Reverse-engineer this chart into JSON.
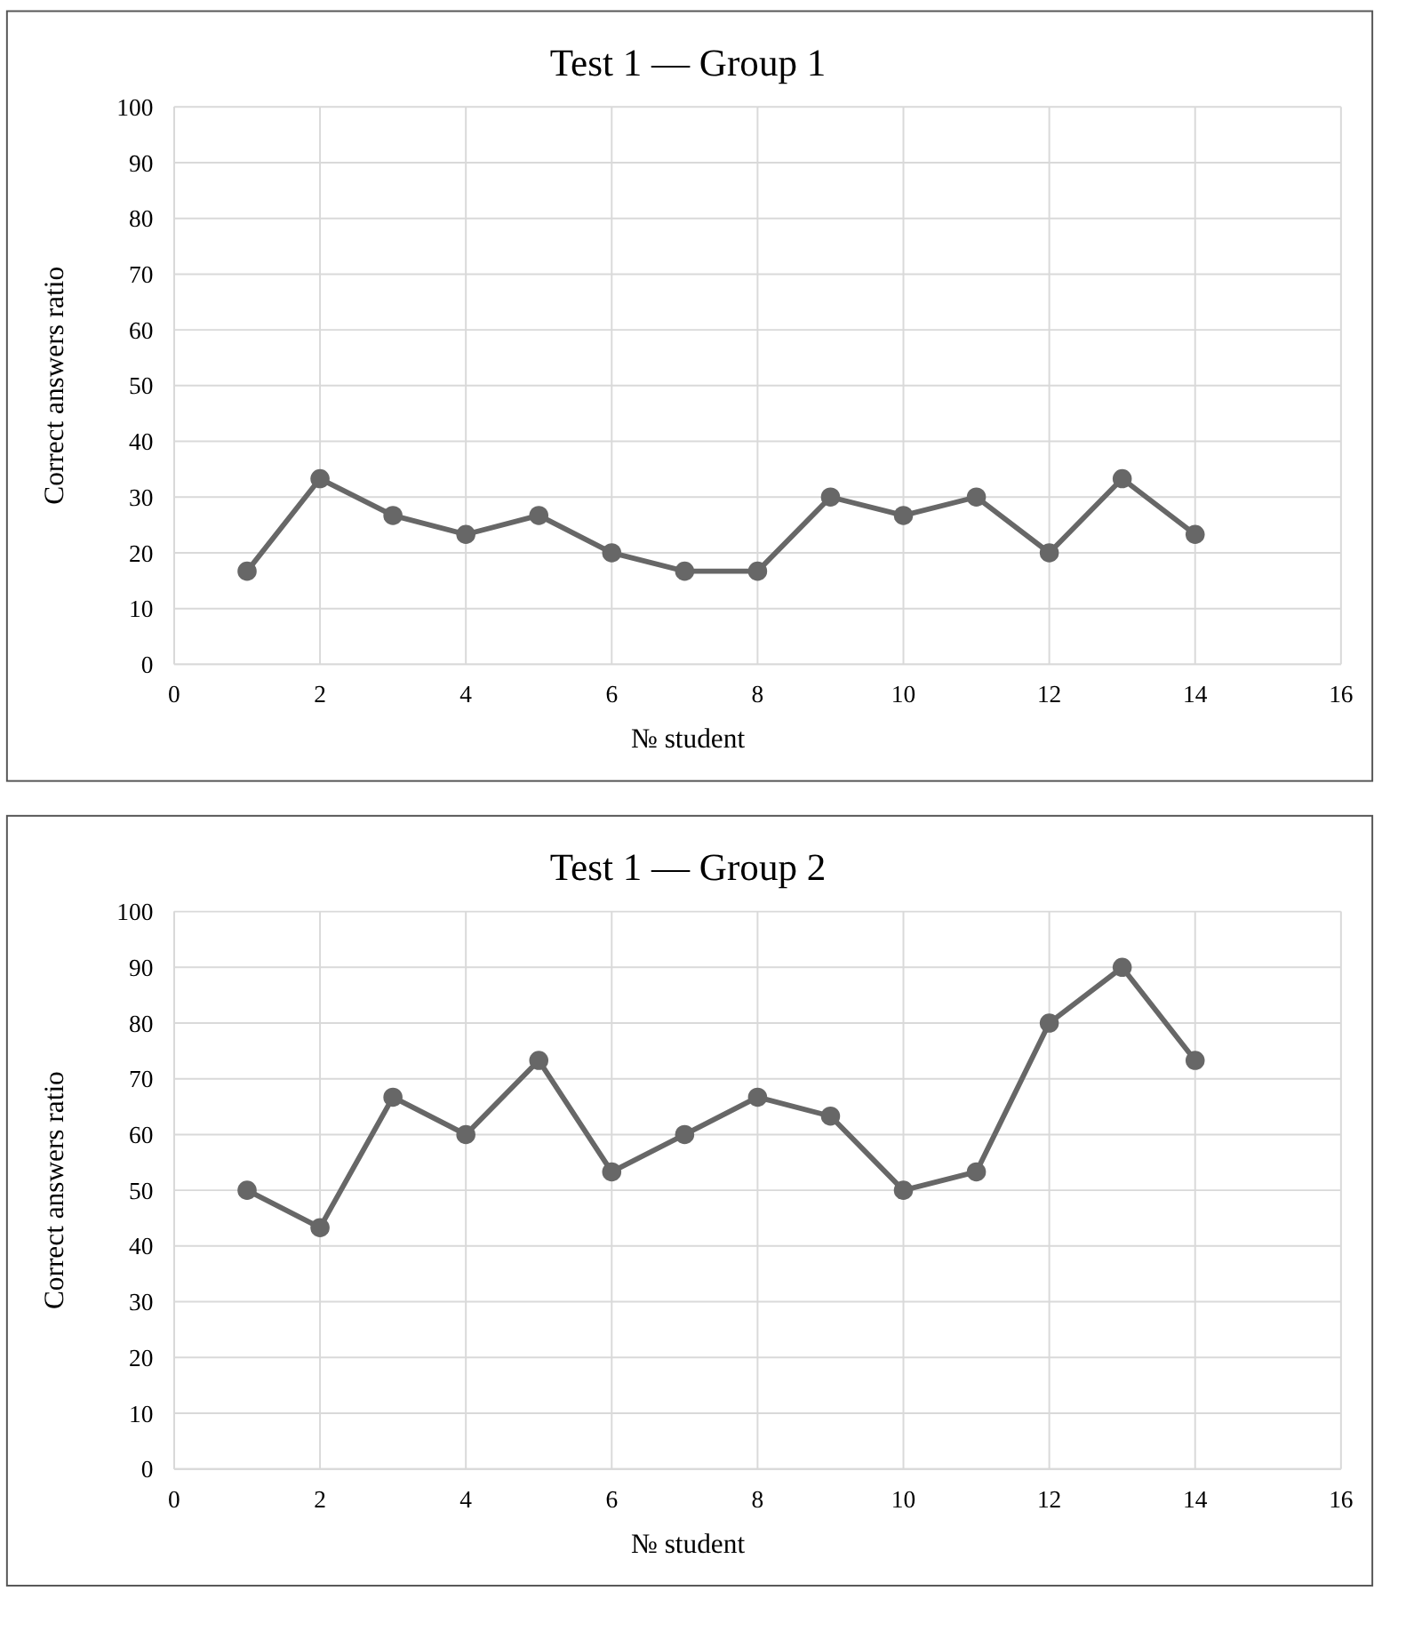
{
  "chart_data": [
    {
      "type": "line",
      "title": "Test 1 — Group 1",
      "xlabel": "№ student",
      "ylabel": "Correct answers ratio",
      "x": [
        1,
        2,
        3,
        4,
        5,
        6,
        7,
        8,
        9,
        10,
        11,
        12,
        13,
        14
      ],
      "values": [
        16.7,
        33.3,
        26.7,
        23.3,
        26.7,
        20,
        16.7,
        16.7,
        30,
        26.7,
        30,
        20,
        33.3,
        23.3
      ],
      "color": "#676767",
      "marker": "circle",
      "grid": true,
      "xlim": [
        0,
        16
      ],
      "xticks": [
        0,
        2,
        4,
        6,
        8,
        10,
        12,
        14,
        16
      ],
      "ylim": [
        0,
        100
      ],
      "yticks": [
        0,
        10,
        20,
        30,
        40,
        50,
        60,
        70,
        80,
        90,
        100
      ]
    },
    {
      "type": "line",
      "title": "Test 1 — Group 2",
      "xlabel": "№ student",
      "ylabel": "Correct answers ratio",
      "x": [
        1,
        2,
        3,
        4,
        5,
        6,
        7,
        8,
        9,
        10,
        11,
        12,
        13,
        14
      ],
      "values": [
        50,
        43.3,
        66.7,
        60,
        73.3,
        53.3,
        60,
        66.7,
        63.3,
        50,
        53.3,
        80,
        90,
        73.3
      ],
      "color": "#676767",
      "marker": "circle",
      "grid": true,
      "xlim": [
        0,
        16
      ],
      "xticks": [
        0,
        2,
        4,
        6,
        8,
        10,
        12,
        14,
        16
      ],
      "ylim": [
        0,
        100
      ],
      "yticks": [
        0,
        10,
        20,
        30,
        40,
        50,
        60,
        70,
        80,
        90,
        100
      ]
    }
  ]
}
